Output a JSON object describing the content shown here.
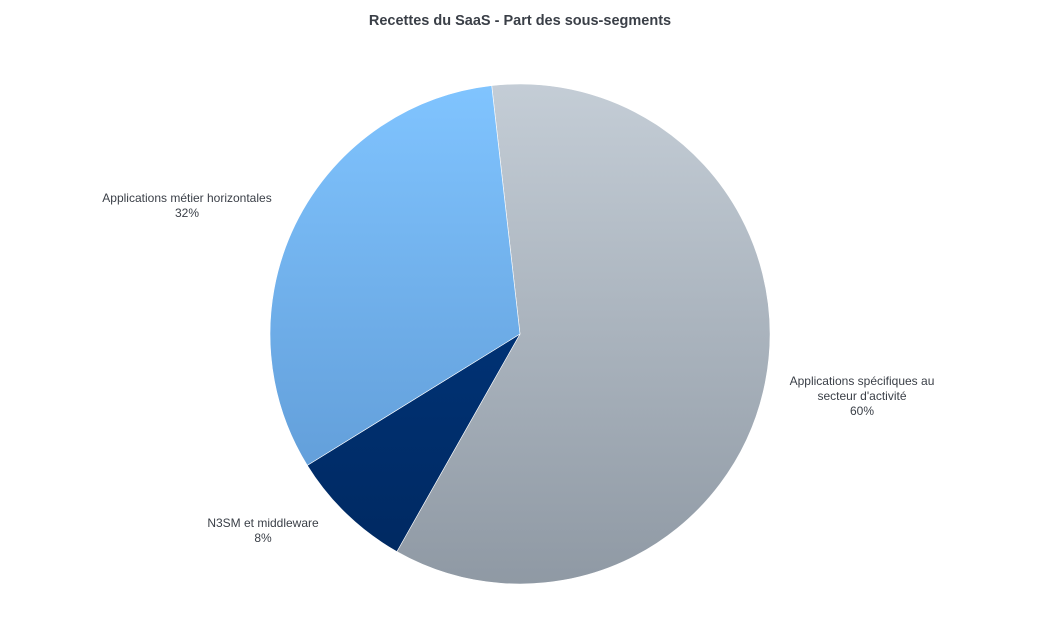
{
  "chart_data": {
    "type": "pie",
    "title": "Recettes du SaaS - Part des sous-segments",
    "slices": [
      {
        "label_lines": [
          "Applications spécifiques au",
          "secteur d'activité"
        ],
        "value": 60,
        "value_label": "60%",
        "color_top": "#c4cdd6",
        "color_bottom": "#8f99a4"
      },
      {
        "label_lines": [
          "N3SM et middleware"
        ],
        "value": 8,
        "value_label": "8%",
        "color_top": "#003c8a",
        "color_bottom": "#00285f"
      },
      {
        "label_lines": [
          "Applications métier horizontales"
        ],
        "value": 32,
        "value_label": "32%",
        "color_top": "#80c4ff",
        "color_bottom": "#5a94cf"
      }
    ],
    "start_angle_deg": -6.5,
    "direction": "clockwise",
    "legend": "none",
    "label_position": "outside"
  }
}
